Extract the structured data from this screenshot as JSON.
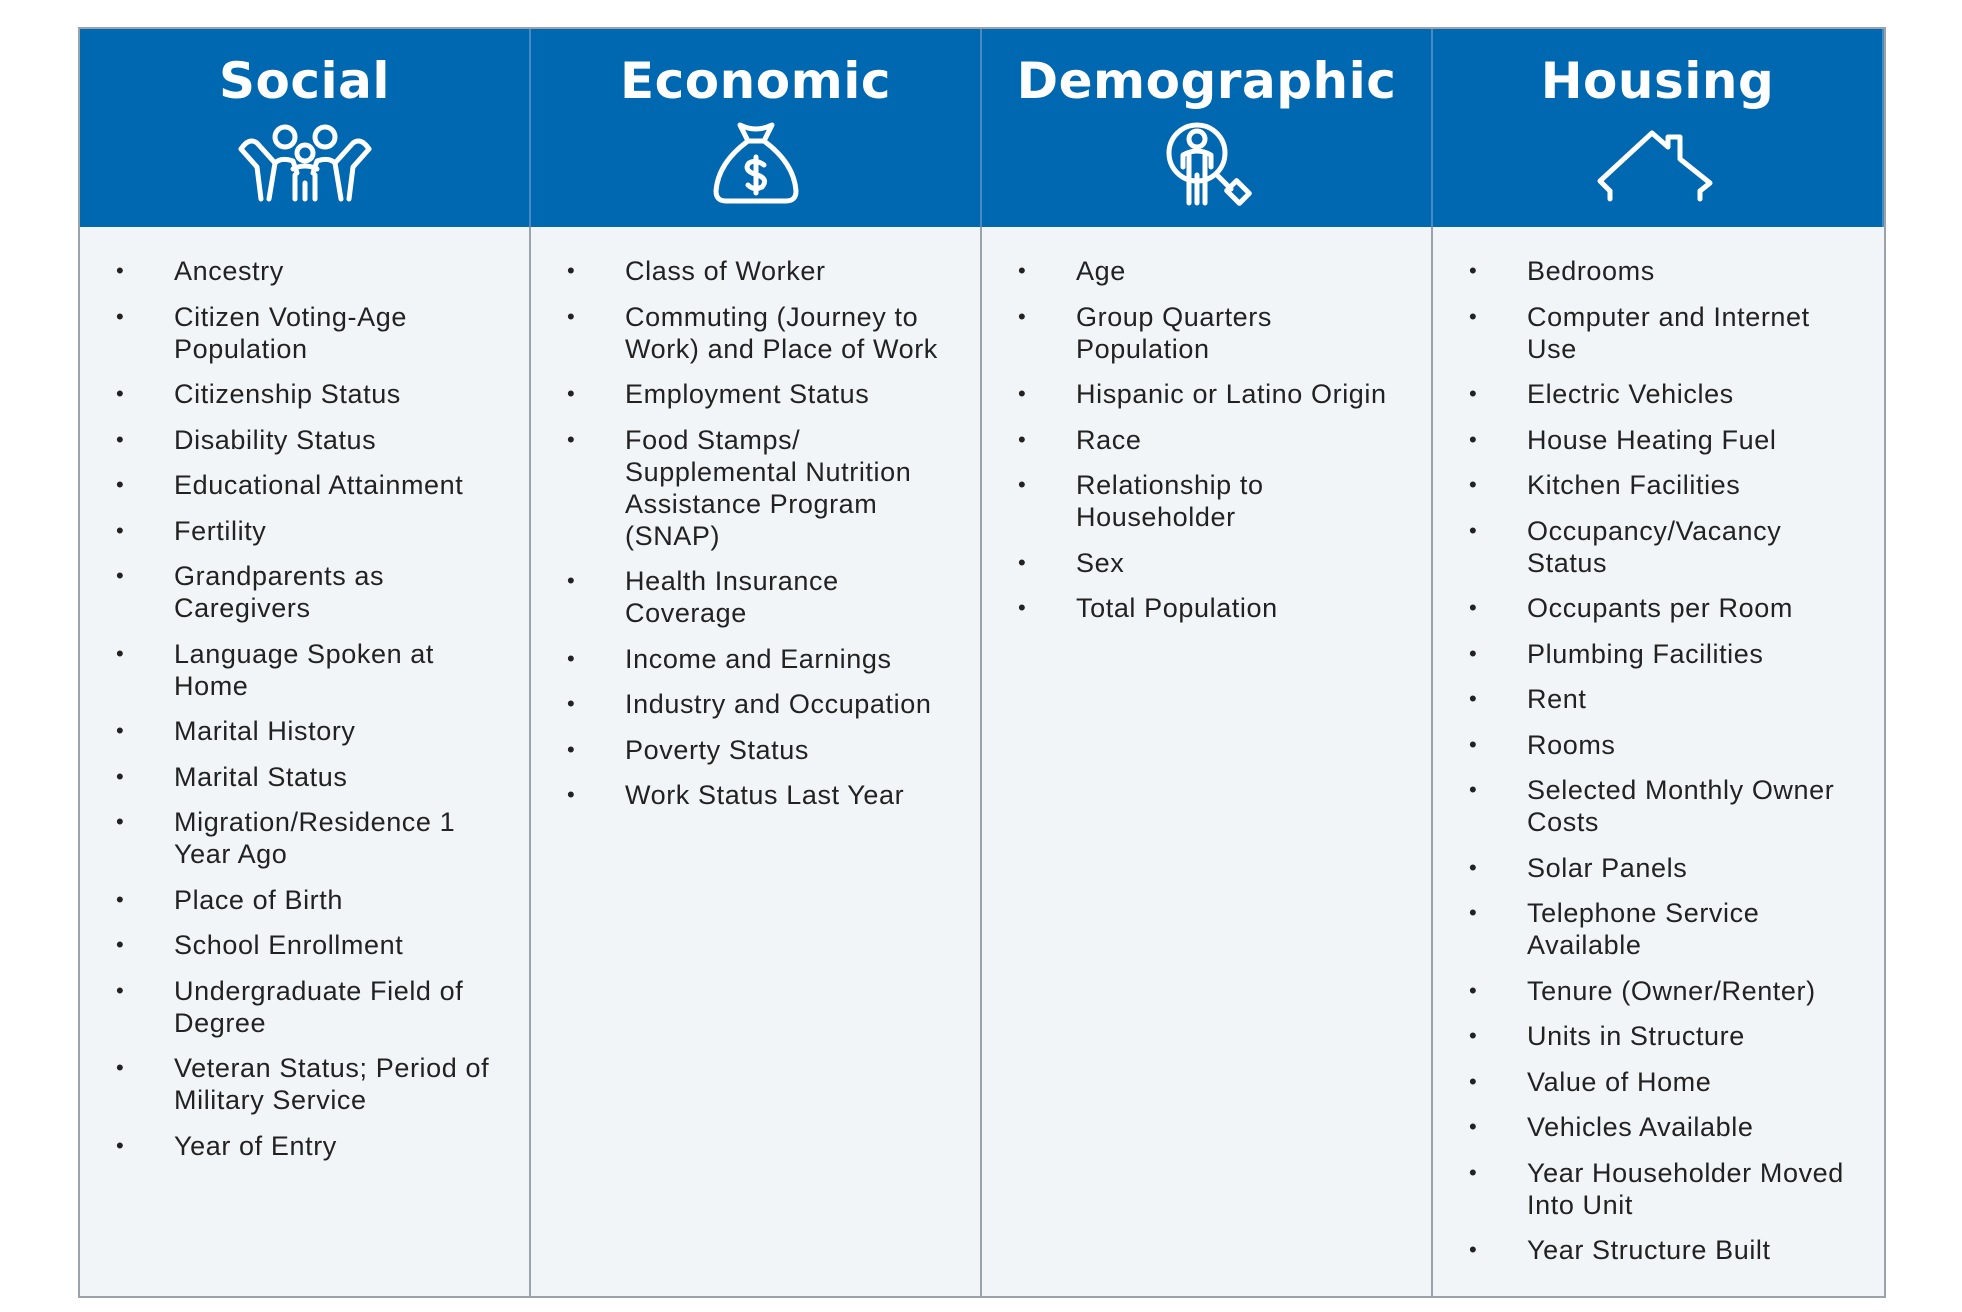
{
  "columns": [
    {
      "title": "Social",
      "icon": "people-celebrating-icon",
      "items": [
        "Ancestry",
        "Citizen Voting-Age Population",
        "Citizenship Status",
        "Disability Status",
        "Educational Attainment",
        "Fertility",
        "Grandparents as Caregivers",
        "Language Spoken at Home",
        "Marital History",
        "Marital Status",
        "Migration/Residence 1 Year Ago",
        "Place of Birth",
        "School Enrollment",
        "Undergraduate Field of Degree",
        "Veteran Status; Period of Military Service",
        "Year of Entry"
      ]
    },
    {
      "title": "Economic",
      "icon": "money-bag-icon",
      "items": [
        "Class of Worker",
        "Commuting (Journey to Work) and Place of Work",
        "Employment Status",
        "Food Stamps/ Supplemental Nutrition Assistance Program (SNAP)",
        "Health Insurance Coverage",
        "Income and Earnings",
        "Industry and Occupation",
        "Poverty Status",
        "Work Status Last Year"
      ]
    },
    {
      "title": "Demographic",
      "icon": "person-magnifier-icon",
      "items": [
        "Age",
        "Group Quarters Population",
        "Hispanic or Latino Origin",
        "Race",
        "Relationship to Householder",
        "Sex",
        "Total Population"
      ]
    },
    {
      "title": "Housing",
      "icon": "house-icon",
      "items": [
        "Bedrooms",
        "Computer and Internet Use",
        "Electric Vehicles",
        "House Heating Fuel",
        "Kitchen Facilities",
        "Occupancy/Vacancy Status",
        "Occupants per Room",
        "Plumbing Facilities",
        "Rent",
        "Rooms",
        "Selected Monthly Owner Costs",
        "Solar Panels",
        "Telephone Service Available",
        "Tenure (Owner/Renter)",
        "Units in Structure",
        "Value of Home",
        "Vehicles Available",
        "Year Householder Moved Into Unit",
        "Year Structure Built"
      ]
    }
  ],
  "bullet": "•"
}
